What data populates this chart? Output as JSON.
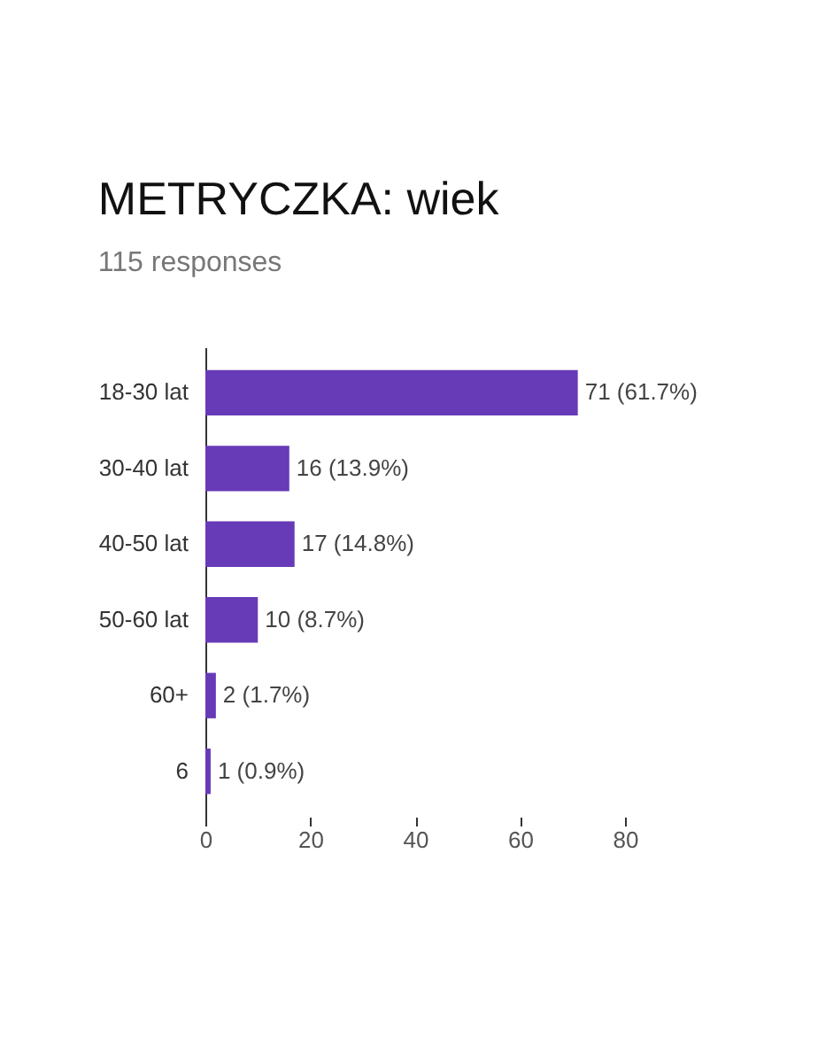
{
  "chart_data": {
    "type": "bar",
    "orientation": "horizontal",
    "title": "METRYCZKA: wiek",
    "subtitle": "115 responses",
    "categories": [
      "18-30 lat",
      "30-40 lat",
      "40-50 lat",
      "50-60 lat",
      "60+",
      "6"
    ],
    "values": [
      71,
      16,
      17,
      10,
      2,
      1
    ],
    "value_labels": [
      "71 (61.7%)",
      "16 (13.9%)",
      "17 (14.8%)",
      "10 (8.7%)",
      "2 (1.7%)",
      "1 (0.9%)"
    ],
    "color": "#673ab7",
    "xlim": [
      0,
      80
    ],
    "xticks": [
      0,
      20,
      40,
      60,
      80
    ],
    "grid": false
  }
}
